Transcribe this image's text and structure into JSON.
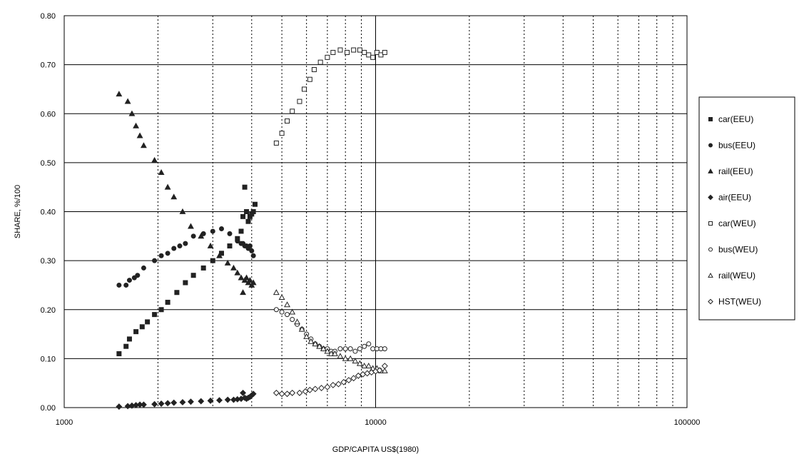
{
  "chart_data": {
    "type": "scatter",
    "xlabel": "GDP/CAPITA US$(1980)",
    "ylabel": "SHARE, %/100",
    "x_scale": "log",
    "xlim": [
      1000,
      100000
    ],
    "ylim": [
      0,
      0.8
    ],
    "x_ticks": [
      "1000",
      "10000",
      "100000"
    ],
    "y_ticks": [
      "0.00",
      "0.10",
      "0.20",
      "0.30",
      "0.40",
      "0.50",
      "0.60",
      "0.70",
      "0.80"
    ],
    "grid": "major solid, minor dotted",
    "legend_position": "right",
    "series": [
      {
        "name": "car(EEU)",
        "marker": "square-filled",
        "color": "#222222",
        "x": [
          1500,
          1580,
          1620,
          1700,
          1780,
          1850,
          1950,
          2050,
          2150,
          2300,
          2450,
          2600,
          2800,
          3000,
          3200,
          3400,
          3600,
          3700,
          3750,
          3800,
          3850,
          3900,
          3950,
          4000,
          4050,
          4100
        ],
        "y": [
          0.11,
          0.125,
          0.14,
          0.155,
          0.165,
          0.175,
          0.19,
          0.2,
          0.215,
          0.235,
          0.255,
          0.27,
          0.285,
          0.3,
          0.315,
          0.33,
          0.345,
          0.36,
          0.39,
          0.45,
          0.4,
          0.38,
          0.39,
          0.395,
          0.4,
          0.415
        ]
      },
      {
        "name": "bus(EEU)",
        "marker": "circle-filled",
        "color": "#222222",
        "x": [
          1500,
          1580,
          1620,
          1680,
          1720,
          1800,
          1950,
          2050,
          2150,
          2250,
          2350,
          2450,
          2600,
          2800,
          3000,
          3200,
          3400,
          3600,
          3700,
          3750,
          3800,
          3850,
          3900,
          3950,
          4000,
          4050
        ],
        "y": [
          0.25,
          0.25,
          0.26,
          0.265,
          0.27,
          0.285,
          0.3,
          0.31,
          0.315,
          0.325,
          0.33,
          0.335,
          0.35,
          0.355,
          0.36,
          0.365,
          0.355,
          0.34,
          0.335,
          0.335,
          0.33,
          0.33,
          0.325,
          0.33,
          0.32,
          0.31
        ]
      },
      {
        "name": "rail(EEU)",
        "marker": "triangle-filled",
        "color": "#222222",
        "x": [
          1500,
          1600,
          1650,
          1700,
          1750,
          1800,
          1950,
          2050,
          2150,
          2250,
          2400,
          2550,
          2750,
          2950,
          3150,
          3350,
          3500,
          3600,
          3700,
          3750,
          3800,
          3850,
          3900,
          3950,
          4000,
          4050
        ],
        "y": [
          0.64,
          0.625,
          0.6,
          0.575,
          0.555,
          0.535,
          0.505,
          0.48,
          0.45,
          0.43,
          0.4,
          0.37,
          0.35,
          0.33,
          0.31,
          0.295,
          0.285,
          0.275,
          0.265,
          0.235,
          0.26,
          0.265,
          0.255,
          0.26,
          0.25,
          0.255
        ]
      },
      {
        "name": "air(EEU)",
        "marker": "diamond-filled",
        "color": "#222222",
        "x": [
          1500,
          1600,
          1650,
          1700,
          1750,
          1800,
          1950,
          2050,
          2150,
          2250,
          2400,
          2550,
          2750,
          2950,
          3150,
          3350,
          3500,
          3600,
          3700,
          3750,
          3800,
          3850,
          3900,
          3950,
          4000,
          4050
        ],
        "y": [
          0.002,
          0.003,
          0.004,
          0.005,
          0.006,
          0.006,
          0.007,
          0.008,
          0.009,
          0.01,
          0.011,
          0.012,
          0.013,
          0.014,
          0.015,
          0.016,
          0.016,
          0.017,
          0.018,
          0.03,
          0.02,
          0.018,
          0.02,
          0.022,
          0.025,
          0.028
        ]
      },
      {
        "name": "car(WEU)",
        "marker": "square-open",
        "color": "#222222",
        "x": [
          4800,
          5000,
          5200,
          5400,
          5700,
          5900,
          6150,
          6350,
          6650,
          7000,
          7300,
          7700,
          8100,
          8500,
          8900,
          9200,
          9500,
          9800,
          10100,
          10400,
          10700
        ],
        "y": [
          0.54,
          0.56,
          0.585,
          0.605,
          0.625,
          0.65,
          0.67,
          0.69,
          0.705,
          0.715,
          0.725,
          0.73,
          0.725,
          0.73,
          0.73,
          0.725,
          0.72,
          0.715,
          0.725,
          0.72,
          0.725
        ]
      },
      {
        "name": "bus(WEU)",
        "marker": "circle-open",
        "color": "#222222",
        "x": [
          4800,
          5000,
          5200,
          5400,
          5600,
          5800,
          6000,
          6200,
          6400,
          6600,
          6800,
          7000,
          7200,
          7400,
          7700,
          8000,
          8300,
          8600,
          8900,
          9200,
          9500,
          9800,
          10100,
          10400,
          10700
        ],
        "y": [
          0.2,
          0.195,
          0.19,
          0.18,
          0.17,
          0.16,
          0.15,
          0.14,
          0.13,
          0.125,
          0.12,
          0.12,
          0.115,
          0.115,
          0.12,
          0.12,
          0.12,
          0.115,
          0.12,
          0.125,
          0.13,
          0.12,
          0.12,
          0.12,
          0.12
        ]
      },
      {
        "name": "rail(WEU)",
        "marker": "triangle-open",
        "color": "#222222",
        "x": [
          4800,
          5000,
          5200,
          5400,
          5600,
          5800,
          6000,
          6200,
          6400,
          6600,
          6800,
          7000,
          7200,
          7400,
          7700,
          8000,
          8300,
          8600,
          8900,
          9200,
          9500,
          9800,
          10100,
          10400,
          10700
        ],
        "y": [
          0.235,
          0.225,
          0.21,
          0.195,
          0.175,
          0.16,
          0.145,
          0.135,
          0.13,
          0.125,
          0.12,
          0.115,
          0.11,
          0.11,
          0.105,
          0.1,
          0.1,
          0.095,
          0.09,
          0.085,
          0.085,
          0.08,
          0.08,
          0.075,
          0.075
        ]
      },
      {
        "name": "HST(WEU)",
        "marker": "diamond-open",
        "color": "#222222",
        "x": [
          4800,
          5000,
          5200,
          5400,
          5700,
          5950,
          6150,
          6400,
          6700,
          7000,
          7300,
          7600,
          7900,
          8200,
          8500,
          8800,
          9100,
          9400,
          9700,
          10000,
          10300,
          10700
        ],
        "y": [
          0.03,
          0.028,
          0.028,
          0.03,
          0.03,
          0.033,
          0.036,
          0.038,
          0.04,
          0.042,
          0.046,
          0.048,
          0.052,
          0.056,
          0.06,
          0.065,
          0.068,
          0.07,
          0.072,
          0.074,
          0.076,
          0.085
        ]
      }
    ]
  }
}
